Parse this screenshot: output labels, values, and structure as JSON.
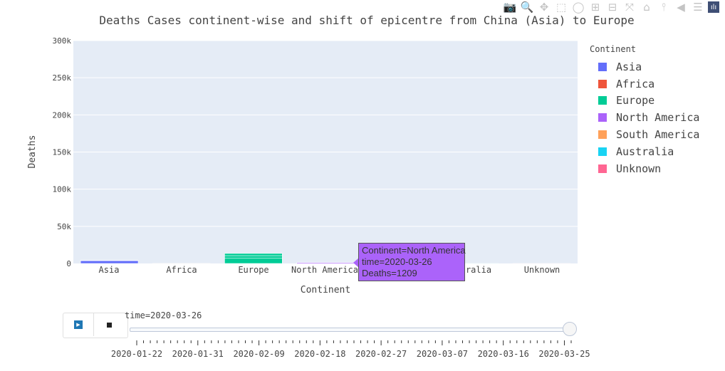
{
  "toolbar": {
    "buttons": [
      {
        "name": "camera-icon",
        "glyph": "📷"
      },
      {
        "name": "zoom-icon",
        "glyph": "🔍"
      },
      {
        "name": "pan-icon",
        "glyph": "✥"
      },
      {
        "name": "box-select-icon",
        "glyph": "⬚"
      },
      {
        "name": "lasso-select-icon",
        "glyph": "◯"
      },
      {
        "name": "zoom-in-icon",
        "glyph": "⊞"
      },
      {
        "name": "zoom-out-icon",
        "glyph": "⊟"
      },
      {
        "name": "autoscale-icon",
        "glyph": "⤧"
      },
      {
        "name": "home-icon",
        "glyph": "⌂"
      },
      {
        "name": "spike-lines-icon",
        "glyph": "⫯"
      },
      {
        "name": "hover-closest-icon",
        "glyph": "◀"
      },
      {
        "name": "hover-compare-icon",
        "glyph": "☰"
      }
    ],
    "logo_glyph": "ılı"
  },
  "chart_data": {
    "type": "bar",
    "title": "Deaths Cases continent-wise and shift of epicentre from China (Asia) to Europe",
    "xlabel": "Continent",
    "ylabel": "Deaths",
    "ylim": [
      0,
      300000
    ],
    "y_ticks": [
      0,
      50000,
      100000,
      150000,
      200000,
      250000,
      300000
    ],
    "y_tick_labels": [
      "0",
      "50k",
      "100k",
      "150k",
      "200k",
      "250k",
      "300k"
    ],
    "categories": [
      "Asia",
      "Africa",
      "Europe",
      "North America",
      "South America",
      "Australia",
      "Unknown"
    ],
    "visible_category_labels": [
      "Asia",
      "Africa",
      "Europe",
      "North America",
      "ralia",
      "Unknown"
    ],
    "series": [
      {
        "name": "Asia",
        "color": "#636efa",
        "segments": [
          3700,
          600
        ]
      },
      {
        "name": "Africa",
        "color": "#ef553b",
        "segments": [
          120
        ]
      },
      {
        "name": "Europe",
        "color": "#00cc96",
        "segments": [
          7000,
          3500,
          3000
        ]
      },
      {
        "name": "North America",
        "color": "#ab63fa",
        "segments": [
          1209
        ]
      },
      {
        "name": "South America",
        "color": "#ffa15a",
        "segments": [
          150
        ]
      },
      {
        "name": "Australia",
        "color": "#19d3f3",
        "segments": [
          15
        ]
      },
      {
        "name": "Unknown",
        "color": "#ff6692",
        "segments": [
          5
        ]
      }
    ],
    "grid": true,
    "legend_title": "Continent",
    "legend_position": "right"
  },
  "tooltip": {
    "lines": [
      "Continent=North America",
      "time=2020-03-26",
      "Deaths=1209"
    ],
    "color": "#ab63fa"
  },
  "animation": {
    "current_label": "time=2020-03-26",
    "progress": 1.0,
    "date_labels": [
      "2020-01-22",
      "2020-01-31",
      "2020-02-09",
      "2020-02-18",
      "2020-02-27",
      "2020-03-07",
      "2020-03-16",
      "2020-03-25"
    ],
    "frame_count": 65
  }
}
